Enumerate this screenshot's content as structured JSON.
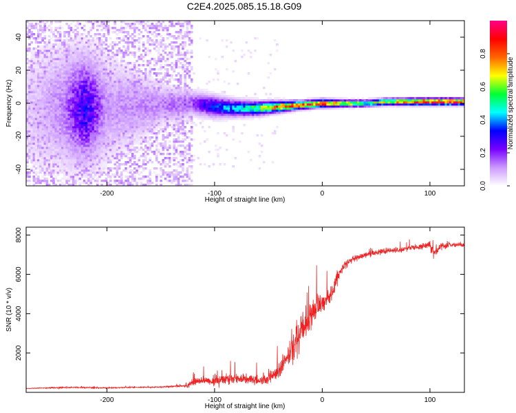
{
  "figure_title": "C2E4.2025.085.15.18.G09",
  "chart_data": [
    {
      "type": "heatmap",
      "title": "C2E4.2025.085.15.18.G09",
      "xlabel": "Height of straight line (km)",
      "ylabel": "Frequency (Hz)",
      "xlim": [
        -275,
        132
      ],
      "ylim": [
        -50,
        50
      ],
      "x_ticks": [
        -200,
        -100,
        0,
        100
      ],
      "y_ticks": [
        -40,
        -20,
        0,
        20,
        40
      ],
      "colorbar": {
        "label": "Normalized spectral amplitude",
        "range": [
          0,
          1
        ],
        "ticks": [
          0.0,
          0.2,
          0.4,
          0.6,
          0.8
        ],
        "colors": [
          "#ffffff",
          "#cc99ff",
          "#7700ff",
          "#0000ff",
          "#00ffff",
          "#00ff33",
          "#ffff00",
          "#ff6600",
          "#ff0000",
          "#ff0088"
        ]
      },
      "ridge": {
        "x": [
          -275,
          -240,
          -220,
          -200,
          -150,
          -120,
          -100,
          -80,
          -60,
          -40,
          -20,
          0,
          20,
          40,
          60,
          80,
          100,
          132
        ],
        "center_hz": [
          -4,
          -3,
          -3,
          -3,
          -1,
          0,
          -2,
          -3,
          -3,
          -2,
          -1,
          0,
          0,
          0,
          1,
          1,
          1,
          1
        ],
        "peak_amplitude": [
          0.05,
          0.15,
          0.35,
          0.12,
          0.15,
          0.2,
          0.35,
          0.45,
          0.6,
          0.8,
          0.85,
          0.9,
          0.75,
          0.6,
          0.7,
          0.85,
          0.95,
          0.9
        ],
        "spread_hz": [
          50,
          45,
          40,
          40,
          15,
          9,
          8,
          6,
          5,
          4,
          3,
          3,
          2.5,
          2.5,
          2.5,
          2.5,
          2.5,
          2.5
        ]
      }
    },
    {
      "type": "line",
      "xlabel": "Height of straight line (km)",
      "ylabel": "SNR (10 * v/v)",
      "xlim": [
        -275,
        132
      ],
      "ylim": [
        0,
        8400
      ],
      "x_ticks": [
        -200,
        -100,
        0,
        100
      ],
      "y_ticks": [
        2000,
        4000,
        6000,
        8000
      ],
      "color": "#ee2222",
      "x": [
        -275,
        -250,
        -225,
        -200,
        -175,
        -150,
        -130,
        -125,
        -120,
        -110,
        -100,
        -90,
        -80,
        -70,
        -60,
        -50,
        -45,
        -40,
        -35,
        -30,
        -25,
        -20,
        -15,
        -10,
        -5,
        0,
        5,
        10,
        15,
        20,
        25,
        30,
        35,
        40,
        50,
        60,
        70,
        80,
        90,
        100,
        105,
        110,
        120,
        132
      ],
      "y": [
        200,
        230,
        250,
        220,
        260,
        270,
        320,
        350,
        500,
        650,
        550,
        700,
        750,
        650,
        600,
        700,
        900,
        1100,
        1500,
        2000,
        2500,
        3000,
        3500,
        4000,
        4300,
        4500,
        4800,
        5200,
        6000,
        6400,
        6700,
        6800,
        6900,
        7000,
        7100,
        7200,
        7250,
        7300,
        7400,
        7500,
        7100,
        7450,
        7500,
        7500
      ],
      "noise": [
        30,
        40,
        50,
        40,
        40,
        40,
        80,
        200,
        300,
        350,
        350,
        400,
        450,
        400,
        400,
        450,
        500,
        700,
        900,
        1100,
        1200,
        1300,
        1200,
        1100,
        1000,
        900,
        800,
        700,
        500,
        400,
        300,
        250,
        250,
        250,
        200,
        200,
        200,
        200,
        200,
        250,
        350,
        250,
        200,
        200
      ]
    }
  ]
}
